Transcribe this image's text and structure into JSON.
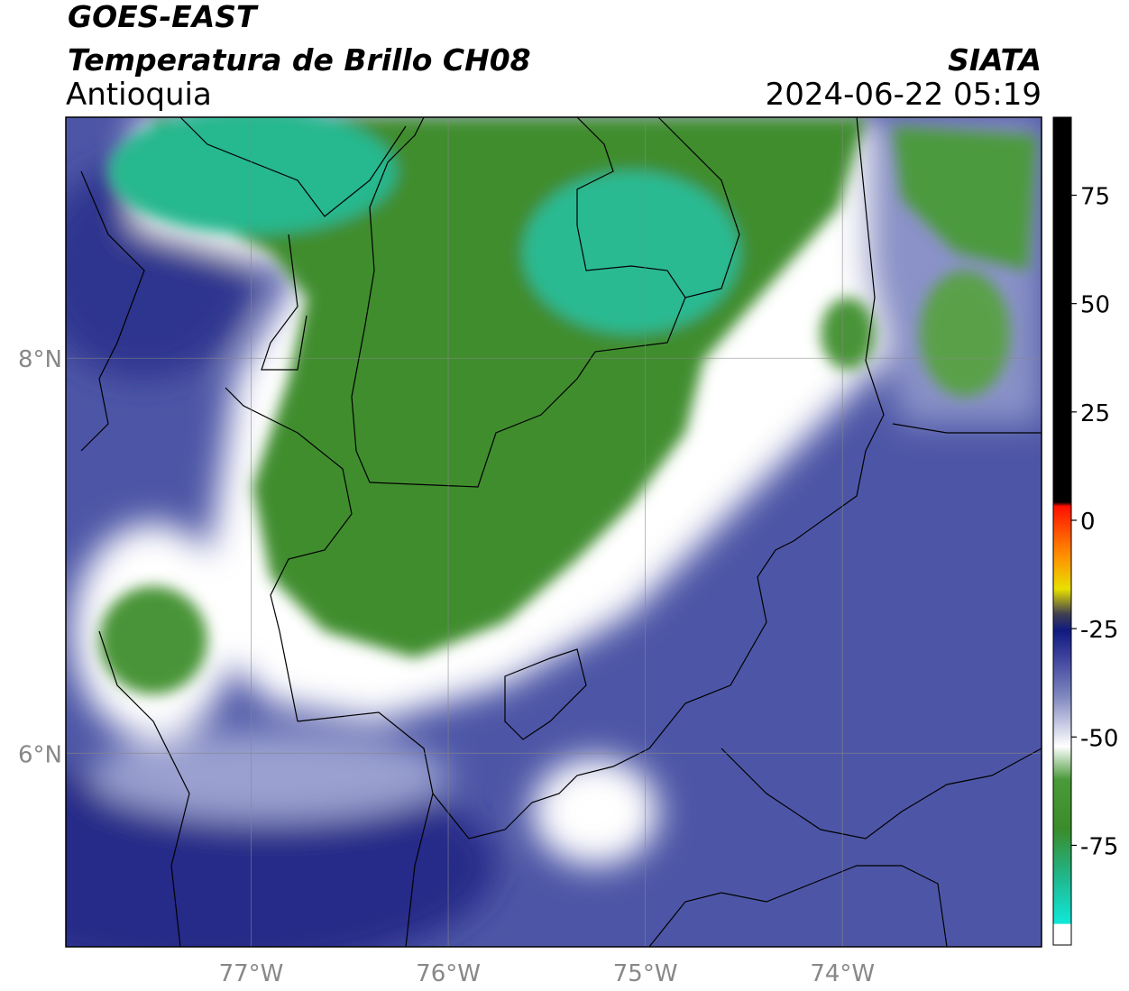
{
  "header": {
    "title": "GOES-EAST",
    "subtitle": "Temperatura de Brillo CH08",
    "region": "Antioquia",
    "source": "SIATA",
    "timestamp": "2024-06-22 05:19"
  },
  "map": {
    "lon_range": [
      -77.94,
      -72.99
    ],
    "lat_range": [
      5.02,
      9.22
    ],
    "lon_ticks": [
      {
        "value": -77,
        "label": "77°W"
      },
      {
        "value": -76,
        "label": "76°W"
      },
      {
        "value": -75,
        "label": "75°W"
      },
      {
        "value": -74,
        "label": "74°W"
      }
    ],
    "lat_ticks": [
      {
        "value": 8,
        "label": "8°N"
      },
      {
        "value": 6,
        "label": "6°N"
      }
    ]
  },
  "colorbar": {
    "range": [
      -98,
      93
    ],
    "ticks": [
      75,
      50,
      25,
      0,
      -25,
      -50,
      -75
    ]
  }
}
